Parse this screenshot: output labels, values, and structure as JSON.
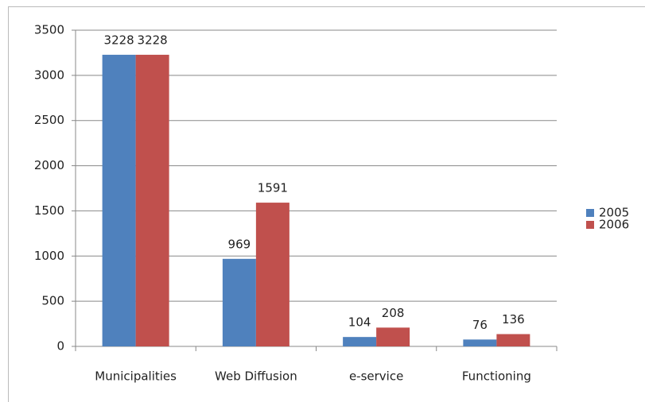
{
  "chart_data": {
    "type": "bar",
    "categories": [
      "Municipalities",
      "Web Diffusion",
      "e-service",
      "Functioning"
    ],
    "series": [
      {
        "name": "2005",
        "color": "#4f81bd",
        "values": [
          3228,
          969,
          104,
          76
        ]
      },
      {
        "name": "2006",
        "color": "#c0504d",
        "values": [
          3228,
          1591,
          208,
          136
        ]
      }
    ],
    "ylim": [
      0,
      3500
    ],
    "yticks": [
      0,
      500,
      1000,
      1500,
      2000,
      2500,
      3000,
      3500
    ],
    "grid": true,
    "legend": "right"
  }
}
